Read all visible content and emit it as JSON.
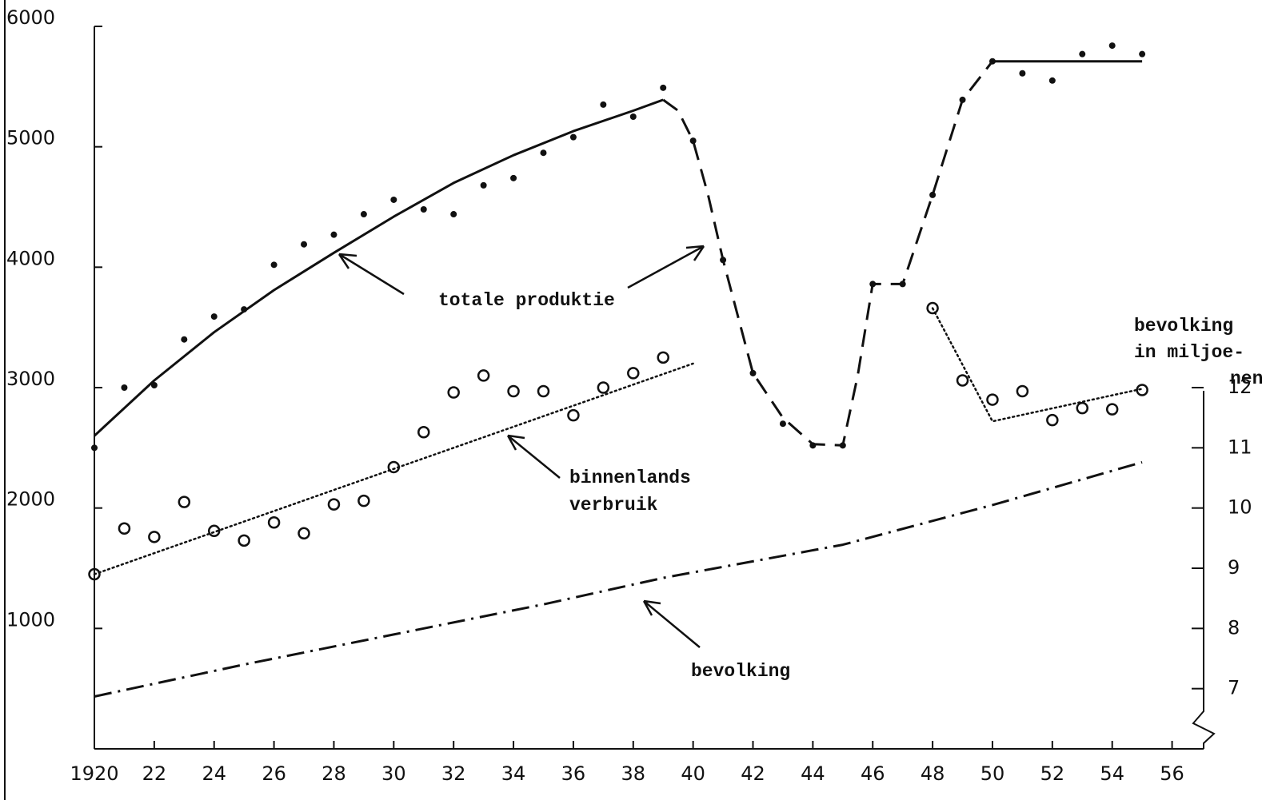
{
  "chart_data": {
    "type": "line",
    "xlim": [
      1920,
      1957
    ],
    "ylim": [
      0,
      6000
    ],
    "y2lim": [
      6,
      18
    ],
    "xticks": [
      {
        "value": 1920,
        "label": "1920"
      },
      {
        "value": 1922,
        "label": "22"
      },
      {
        "value": 1924,
        "label": "24"
      },
      {
        "value": 1926,
        "label": "26"
      },
      {
        "value": 1928,
        "label": "28"
      },
      {
        "value": 1930,
        "label": "30"
      },
      {
        "value": 1932,
        "label": "32"
      },
      {
        "value": 1934,
        "label": "34"
      },
      {
        "value": 1936,
        "label": "36"
      },
      {
        "value": 1938,
        "label": "38"
      },
      {
        "value": 1940,
        "label": "40"
      },
      {
        "value": 1942,
        "label": "42"
      },
      {
        "value": 1944,
        "label": "44"
      },
      {
        "value": 1946,
        "label": "46"
      },
      {
        "value": 1948,
        "label": "48"
      },
      {
        "value": 1950,
        "label": "50"
      },
      {
        "value": 1952,
        "label": "52"
      },
      {
        "value": 1954,
        "label": "54"
      },
      {
        "value": 1956,
        "label": "56"
      }
    ],
    "yticks": [
      1000,
      2000,
      3000,
      4000,
      5000,
      6000
    ],
    "y2ticks": [
      7,
      8,
      9,
      10,
      11,
      12
    ],
    "y2_title": [
      "bevolking",
      "in miljoe-",
      "nen"
    ],
    "annotations": [
      {
        "text": "totale produktie"
      },
      {
        "text": "binnenlands"
      },
      {
        "text": "verbruik"
      },
      {
        "text": "bevolking"
      }
    ],
    "series": [
      {
        "style": "dots",
        "color": "#111",
        "x": [
          1920,
          1921,
          1922,
          1923,
          1924,
          1925,
          1926,
          1927,
          1928,
          1929,
          1930,
          1931,
          1932,
          1933,
          1934,
          1935,
          1936,
          1937,
          1938,
          1939,
          1940,
          1941,
          1942,
          1943,
          1944,
          1945,
          1946,
          1947,
          1948,
          1949,
          1950,
          1951,
          1952,
          1953,
          1954,
          1955
        ],
        "values": [
          2500,
          3000,
          3020,
          3400,
          3590,
          3650,
          4020,
          4190,
          4270,
          4440,
          4560,
          4480,
          4440,
          4680,
          4740,
          4950,
          5080,
          5350,
          5250,
          5490,
          5050,
          4060,
          3120,
          2700,
          2520,
          2520,
          3860,
          3860,
          4600,
          5390,
          5710,
          5610,
          5550,
          5770,
          5840,
          5770
        ]
      },
      {
        "style": "solid",
        "color": "#111",
        "x": [
          1920,
          1922,
          1924,
          1926,
          1928,
          1930,
          1932,
          1934,
          1936,
          1938,
          1939
        ],
        "values": [
          2600,
          3060,
          3460,
          3810,
          4120,
          4420,
          4700,
          4930,
          5130,
          5300,
          5390
        ]
      },
      {
        "style": "dashed",
        "color": "#111",
        "x": [
          1939,
          1939.5,
          1940,
          1940.5,
          1941,
          1942,
          1943,
          1944,
          1945,
          1945.5,
          1946,
          1947,
          1948,
          1949,
          1950
        ],
        "values": [
          5390,
          5300,
          5050,
          4600,
          4060,
          3120,
          2750,
          2530,
          2520,
          3100,
          3860,
          3860,
          4600,
          5390,
          5710
        ]
      },
      {
        "style": "solid",
        "color": "#111",
        "x": [
          1950,
          1955
        ],
        "values": [
          5710,
          5710
        ]
      },
      {
        "style": "circles",
        "color": "#111",
        "x": [
          1920,
          1921,
          1922,
          1923,
          1924,
          1925,
          1926,
          1927,
          1928,
          1929,
          1930,
          1931,
          1932,
          1933,
          1934,
          1935,
          1936,
          1937,
          1938,
          1939,
          1948,
          1949,
          1950,
          1951,
          1952,
          1953,
          1954,
          1955
        ],
        "values": [
          1450,
          1830,
          1760,
          2050,
          1810,
          1730,
          1880,
          1790,
          2030,
          2060,
          2340,
          2630,
          2960,
          3100,
          2970,
          2970,
          2770,
          3000,
          3120,
          3250,
          3660,
          3060,
          2900,
          2970,
          2730,
          2830,
          2820,
          2980
        ]
      },
      {
        "style": "dotted",
        "color": "#111",
        "x": [
          1920,
          1940,
          1944,
          1948,
          1950,
          1955
        ],
        "values": [
          1450,
          3200,
          null,
          3660,
          2720,
          2990
        ]
      },
      {
        "style": "dashdot",
        "color": "#111",
        "axis": "y2",
        "x": [
          1920,
          1925,
          1930,
          1935,
          1939,
          1945,
          1950,
          1955
        ],
        "values": [
          6.87,
          7.4,
          7.9,
          8.4,
          8.84,
          9.39,
          10.05,
          10.76
        ]
      }
    ]
  }
}
